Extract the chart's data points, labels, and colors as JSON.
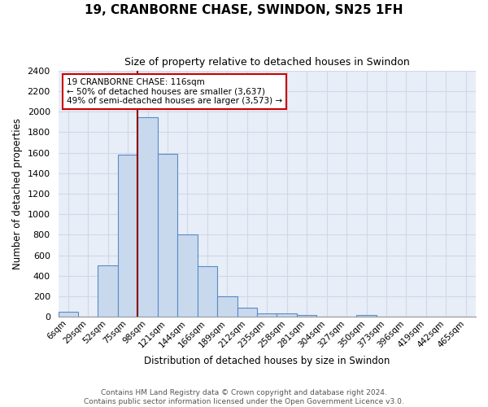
{
  "title": "19, CRANBORNE CHASE, SWINDON, SN25 1FH",
  "subtitle": "Size of property relative to detached houses in Swindon",
  "xlabel": "Distribution of detached houses by size in Swindon",
  "ylabel": "Number of detached properties",
  "footnote1": "Contains HM Land Registry data © Crown copyright and database right 2024.",
  "footnote2": "Contains public sector information licensed under the Open Government Licence v3.0.",
  "bar_labels": [
    "6sqm",
    "29sqm",
    "52sqm",
    "75sqm",
    "98sqm",
    "121sqm",
    "144sqm",
    "166sqm",
    "189sqm",
    "212sqm",
    "235sqm",
    "258sqm",
    "281sqm",
    "304sqm",
    "327sqm",
    "350sqm",
    "373sqm",
    "396sqm",
    "419sqm",
    "442sqm",
    "465sqm"
  ],
  "bar_values": [
    50,
    0,
    500,
    1580,
    1950,
    1590,
    800,
    490,
    195,
    85,
    35,
    30,
    20,
    0,
    0,
    20,
    0,
    0,
    0,
    0,
    0
  ],
  "bar_color": "#c8d9ee",
  "bar_edge_color": "#5a8ac6",
  "vline_x": 3.5,
  "vline_color": "#8b0000",
  "annotation_text": "19 CRANBORNE CHASE: 116sqm\n← 50% of detached houses are smaller (3,637)\n49% of semi-detached houses are larger (3,573) →",
  "annotation_box_color": "#ffffff",
  "annotation_box_edge": "#cc0000",
  "ylim": [
    0,
    2400
  ],
  "yticks": [
    0,
    200,
    400,
    600,
    800,
    1000,
    1200,
    1400,
    1600,
    1800,
    2000,
    2200,
    2400
  ],
  "grid_color": "#d0d8e8",
  "background_color": "#e8eef7"
}
